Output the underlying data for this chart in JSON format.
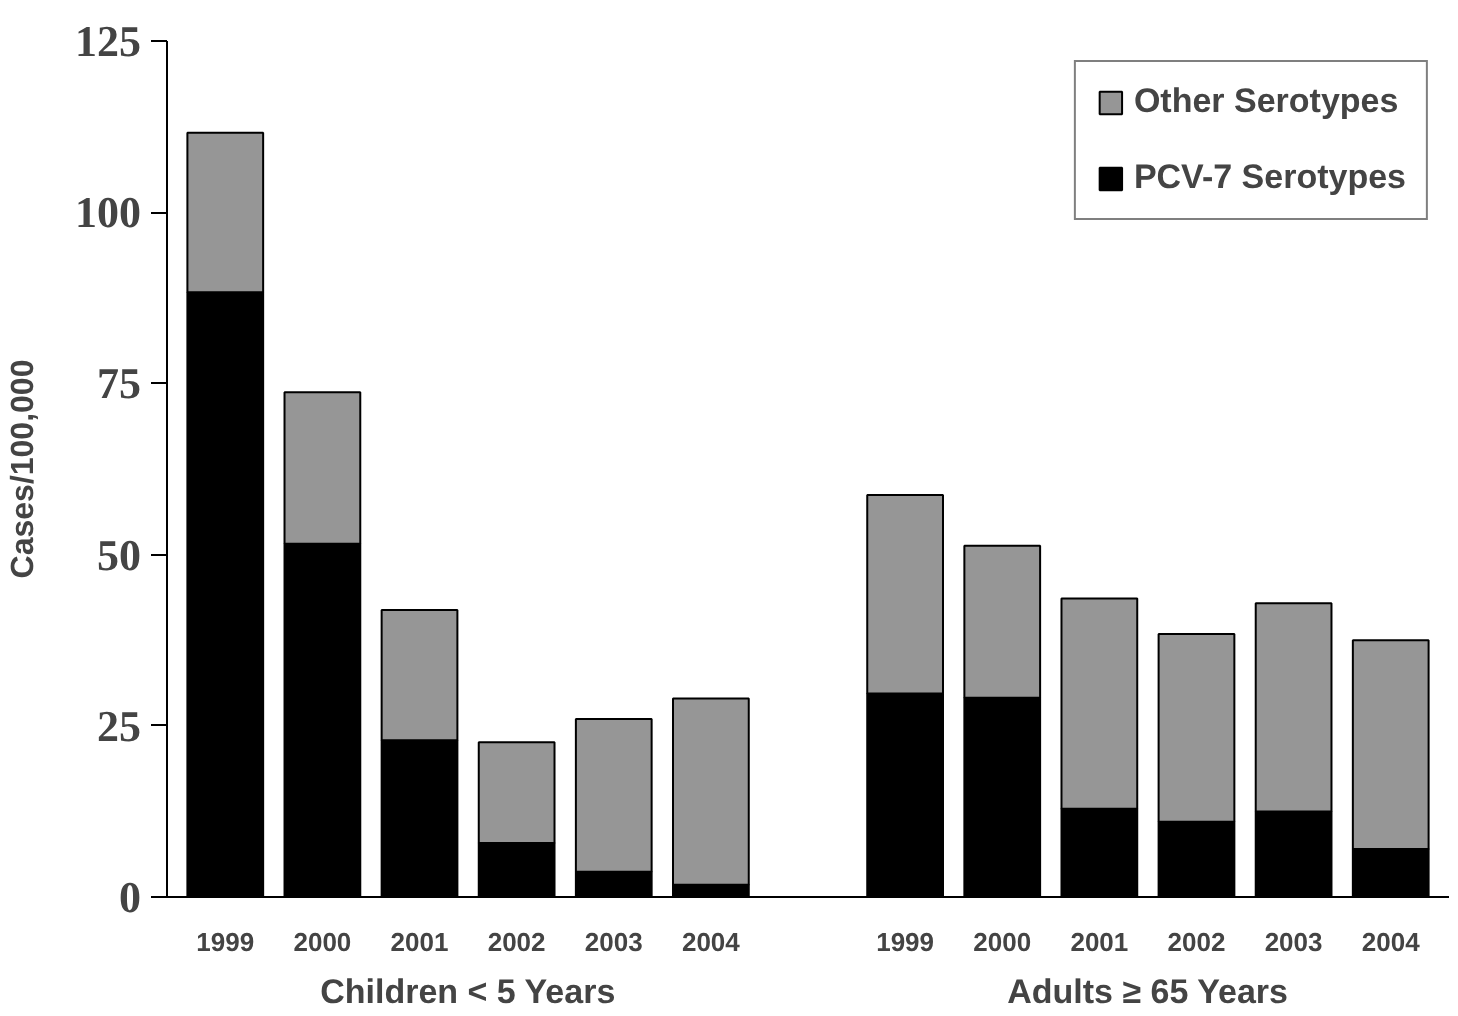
{
  "chart_data": {
    "type": "bar",
    "stacked": true,
    "ylabel": "Cases/100,000",
    "categories": [
      "1999",
      "2000",
      "2001",
      "2002",
      "2003",
      "2004",
      null,
      "1999",
      "2000",
      "2001",
      "2002",
      "2003",
      "2004"
    ],
    "series": [
      {
        "name": "PCV-7 Serotypes",
        "color": "#000000",
        "values": [
          88.3,
          51.6,
          22.9,
          7.9,
          3.7,
          1.8,
          null,
          29.7,
          29.1,
          12.9,
          11,
          12.5,
          7
        ]
      },
      {
        "name": "Other Serotypes",
        "color": "#969696",
        "values": [
          23.3,
          22.1,
          19,
          14.7,
          22.3,
          27.2,
          null,
          29,
          22.2,
          30.7,
          27.4,
          30.4,
          30.5
        ]
      }
    ],
    "annotations": [
      "Children < 5 Years",
      "Adults ≥ 65 Years"
    ],
    "ylim": [
      0,
      125
    ],
    "yticks": [
      0,
      25,
      50,
      75,
      100,
      125
    ],
    "grid": false,
    "legend": "top right"
  }
}
